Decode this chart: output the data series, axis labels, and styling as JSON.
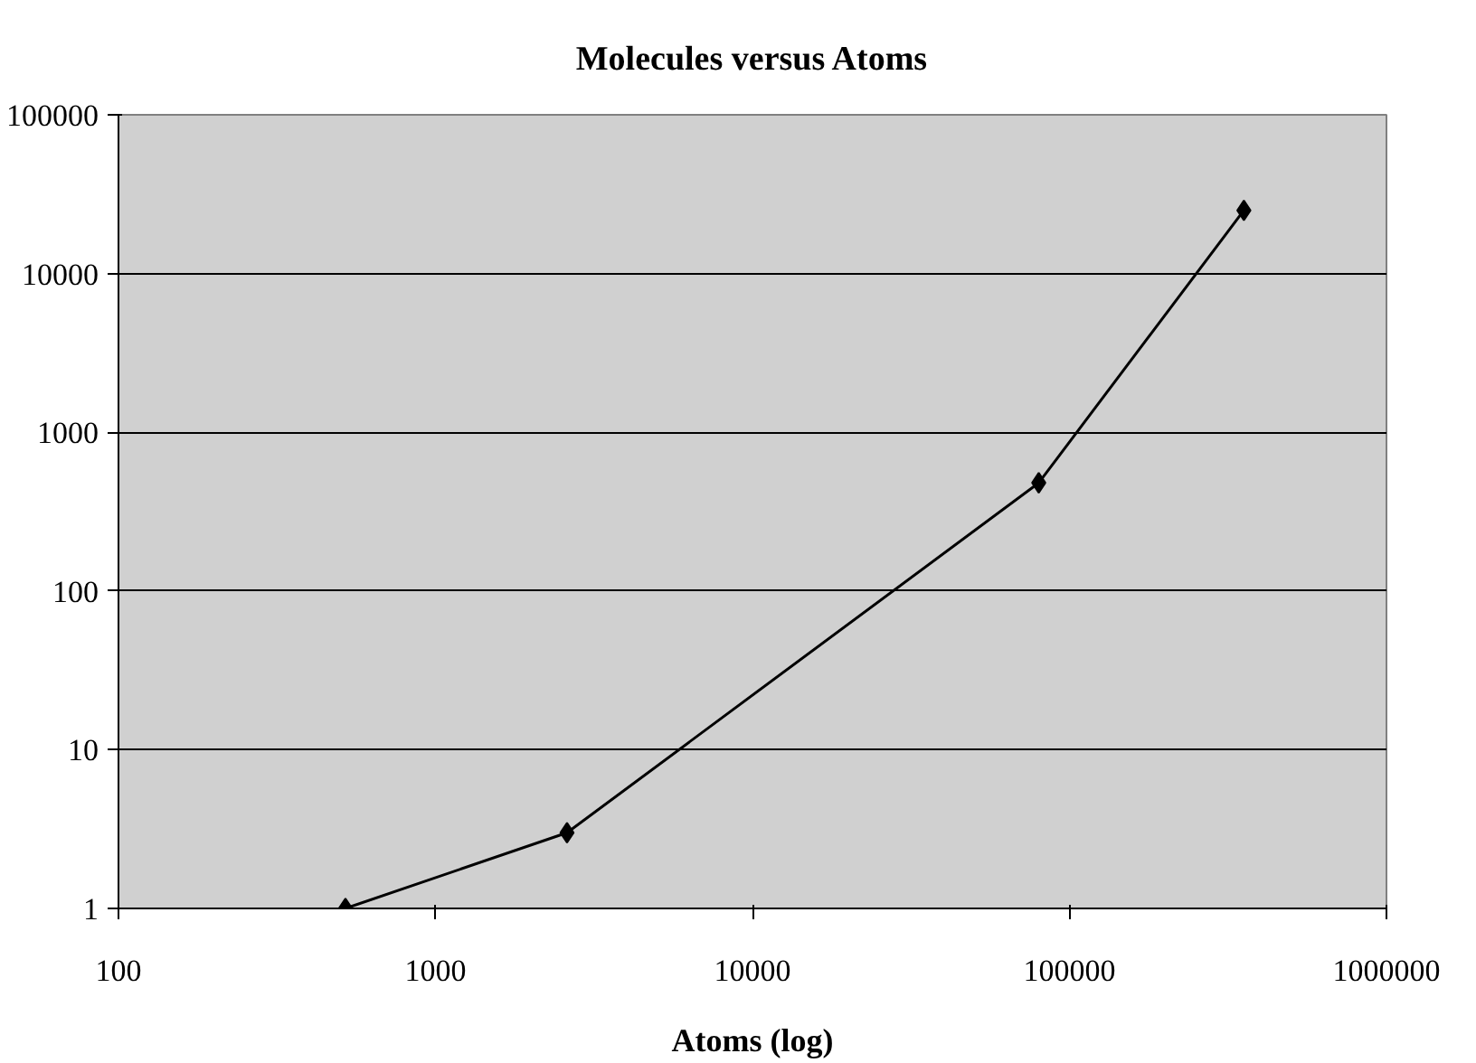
{
  "chart_data": {
    "type": "line",
    "title": "Molecules versus Atoms",
    "xlabel": "Atoms (log)",
    "x": [
      520,
      2600,
      80000,
      355000
    ],
    "series": [
      {
        "color": "#000000",
        "values": [
          1,
          3,
          480,
          25000
        ]
      }
    ],
    "log": "xy",
    "xlim": [
      100,
      1000000
    ],
    "xticks": [
      100,
      1000,
      10000,
      100000,
      1000000
    ],
    "ylim": [
      1,
      100000
    ],
    "yticks": [
      1,
      10,
      100,
      1000,
      10000,
      100000
    ],
    "grid": "y",
    "marker": "diamond",
    "line_style": "solid"
  }
}
